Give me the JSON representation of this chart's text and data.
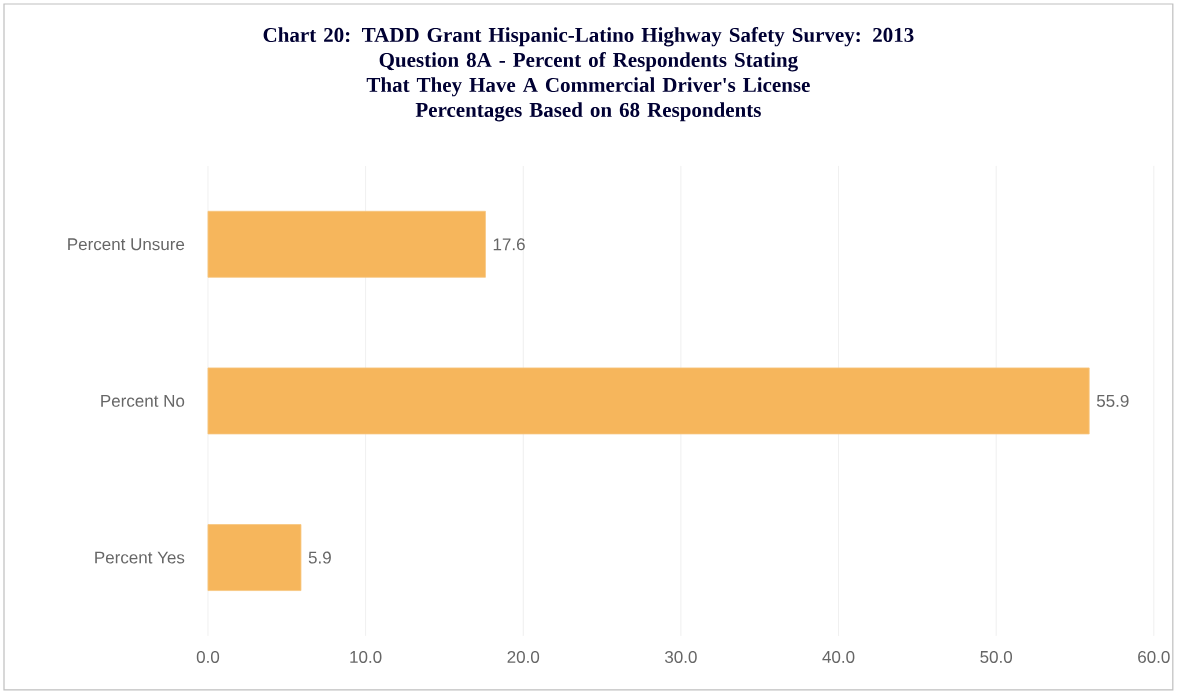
{
  "chart_data": {
    "type": "bar",
    "orientation": "horizontal",
    "title": "Chart 20: TADD Grant Hispanic-Latino Highway Safety Survey: 2013",
    "subtitle": "Question 8A - Percent of Respondents Stating That They Have A Commercial Driver's License",
    "annotations": [
      "Percentages Based on 68 Respondents"
    ],
    "categories": [
      "Percent Unsure",
      "Percent No",
      "Percent Yes"
    ],
    "values": [
      17.6,
      55.9,
      5.9
    ],
    "color": "#f6b65c",
    "data_labels": true,
    "xlim": [
      0,
      60
    ],
    "xticks": [
      {
        "value": 0,
        "label": "0.0"
      },
      {
        "value": 10,
        "label": "10.0"
      },
      {
        "value": 20,
        "label": "20.0"
      },
      {
        "value": 30,
        "label": "30.0"
      },
      {
        "value": 40,
        "label": "40.0"
      },
      {
        "value": 50,
        "label": "50.0"
      },
      {
        "value": 60,
        "label": "60.0"
      }
    ],
    "grid": "x"
  }
}
